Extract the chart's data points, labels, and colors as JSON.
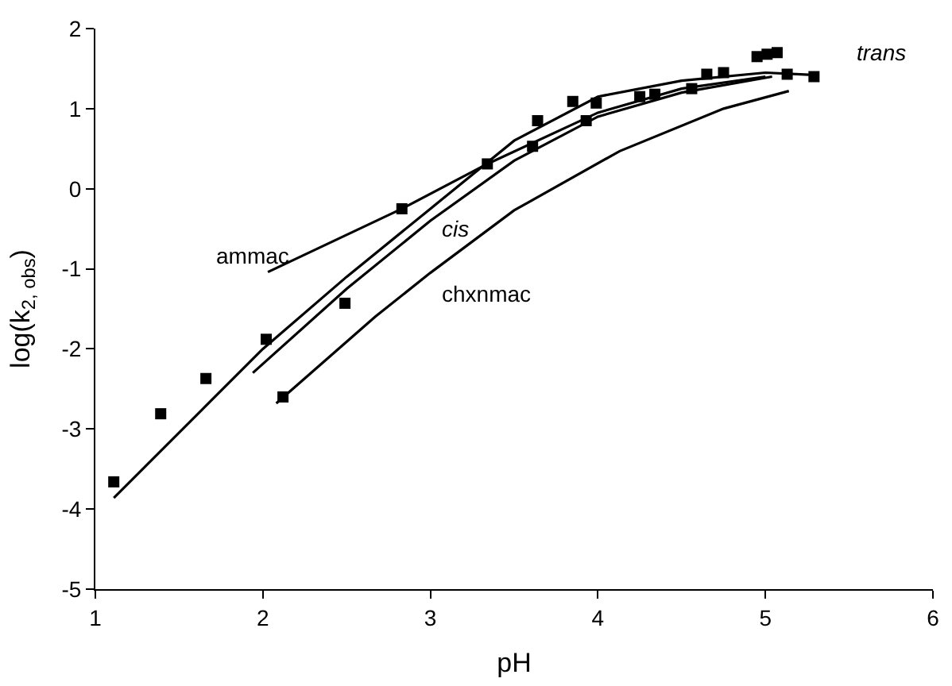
{
  "chart_data": {
    "type": "scatter",
    "xlabel": "pH",
    "ylabel": "log(k$_{2, obs}$)",
    "xlim": [
      1,
      6
    ],
    "xticks": [
      1,
      2,
      3,
      4,
      5,
      6
    ],
    "ylim": [
      -5,
      2
    ],
    "yticks": [
      -5,
      -4,
      -3,
      -2,
      -1,
      0,
      1,
      2
    ],
    "grid": false,
    "legend": false,
    "series": [
      {
        "color": "#000000",
        "marker": "square",
        "x": [
          1.11,
          1.39,
          1.66,
          2.02,
          2.12,
          2.49,
          2.83,
          3.34,
          3.61,
          3.64,
          3.85,
          3.93,
          3.99,
          4.25,
          4.34,
          4.56,
          4.65,
          4.75,
          4.95,
          5.01,
          5.07,
          5.13,
          5.29
        ],
        "values": [
          -3.66,
          -2.81,
          -2.37,
          -1.88,
          -2.6,
          -1.43,
          -0.25,
          0.31,
          0.53,
          0.85,
          1.09,
          0.85,
          1.07,
          1.15,
          1.18,
          1.25,
          1.43,
          1.45,
          1.65,
          1.68,
          1.7,
          1.43,
          1.4
        ]
      },
      {
        "type": "line",
        "name": "trans",
        "marker": "none",
        "color": "#000000",
        "x": [
          1.11,
          2.0,
          2.5,
          3.0,
          3.5,
          4.0,
          4.5,
          5.0,
          5.3
        ],
        "values": [
          -3.86,
          -2.0,
          -1.1,
          -0.25,
          0.6,
          1.15,
          1.35,
          1.45,
          1.42
        ]
      },
      {
        "type": "line",
        "name": "cis",
        "marker": "none",
        "color": "#000000",
        "x": [
          1.94,
          2.5,
          3.0,
          3.5,
          4.0,
          4.5,
          5.04
        ],
        "values": [
          -2.3,
          -1.25,
          -0.4,
          0.35,
          0.9,
          1.2,
          1.4
        ]
      },
      {
        "type": "line",
        "name": "ammac",
        "marker": "none",
        "color": "#000000",
        "x": [
          2.03,
          2.83,
          3.34,
          4.0,
          4.5,
          5.0
        ],
        "values": [
          -1.04,
          -0.25,
          0.31,
          0.95,
          1.25,
          1.4
        ]
      },
      {
        "type": "line",
        "name": "chxnmac",
        "marker": "none",
        "color": "#000000",
        "x": [
          2.08,
          2.67,
          3.0,
          3.5,
          4.13,
          4.75,
          5.14
        ],
        "values": [
          -2.68,
          -1.6,
          -1.05,
          -0.27,
          0.47,
          1.0,
          1.22
        ]
      }
    ]
  }
}
